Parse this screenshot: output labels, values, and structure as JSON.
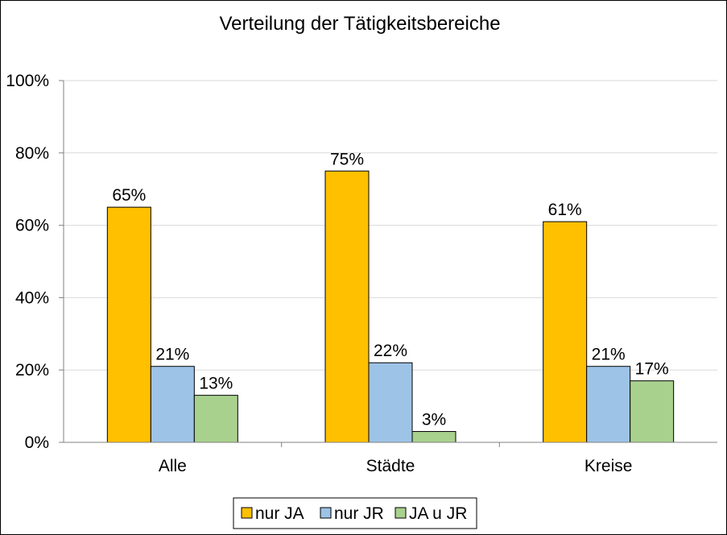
{
  "chart_data": {
    "type": "bar",
    "title": "Verteilung der Tätigkeitsbereiche",
    "xlabel": "",
    "ylabel": "",
    "categories": [
      "Alle",
      "Städte",
      "Kreise"
    ],
    "ylim": [
      0,
      100
    ],
    "yticks": [
      0,
      20,
      40,
      60,
      80,
      100
    ],
    "ytick_labels": [
      "0%",
      "20%",
      "40%",
      "60%",
      "80%",
      "100%"
    ],
    "grid": true,
    "legend_position": "bottom",
    "series": [
      {
        "name": "nur JA",
        "color": "#FFC000",
        "values": [
          65,
          75,
          61
        ],
        "labels": [
          "65%",
          "75%",
          "61%"
        ]
      },
      {
        "name": "nur JR",
        "color": "#9DC3E6",
        "values": [
          21,
          22,
          21
        ],
        "labels": [
          "21%",
          "22%",
          "21%"
        ]
      },
      {
        "name": "JA u JR",
        "color": "#A9D18E",
        "values": [
          13,
          3,
          17
        ],
        "labels": [
          "13%",
          "3%",
          "17%"
        ]
      }
    ]
  }
}
